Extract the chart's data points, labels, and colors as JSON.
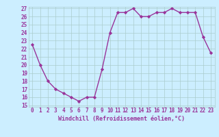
{
  "x": [
    0,
    1,
    2,
    3,
    4,
    5,
    6,
    7,
    8,
    9,
    10,
    11,
    12,
    13,
    14,
    15,
    16,
    17,
    18,
    19,
    20,
    21,
    22,
    23
  ],
  "y": [
    22.5,
    20.0,
    18.0,
    17.0,
    16.5,
    16.0,
    15.5,
    16.0,
    16.0,
    19.5,
    24.0,
    26.5,
    26.5,
    27.0,
    26.0,
    26.0,
    26.5,
    26.5,
    27.0,
    26.5,
    26.5,
    26.5,
    23.5,
    21.5
  ],
  "line_color": "#993399",
  "marker": "D",
  "marker_size": 2.2,
  "xlabel": "Windchill (Refroidissement éolien,°C)",
  "ylim": [
    15,
    27
  ],
  "xlim": [
    -0.5,
    23.5
  ],
  "yticks": [
    15,
    16,
    17,
    18,
    19,
    20,
    21,
    22,
    23,
    24,
    25,
    26,
    27
  ],
  "xticks": [
    0,
    1,
    2,
    3,
    4,
    5,
    6,
    7,
    8,
    9,
    10,
    11,
    12,
    13,
    14,
    15,
    16,
    17,
    18,
    19,
    20,
    21,
    22,
    23
  ],
  "bg_color": "#cceeff",
  "grid_color": "#aacccc",
  "line_width": 1.0,
  "tick_fontsize": 5.5,
  "xlabel_fontsize": 6.0
}
